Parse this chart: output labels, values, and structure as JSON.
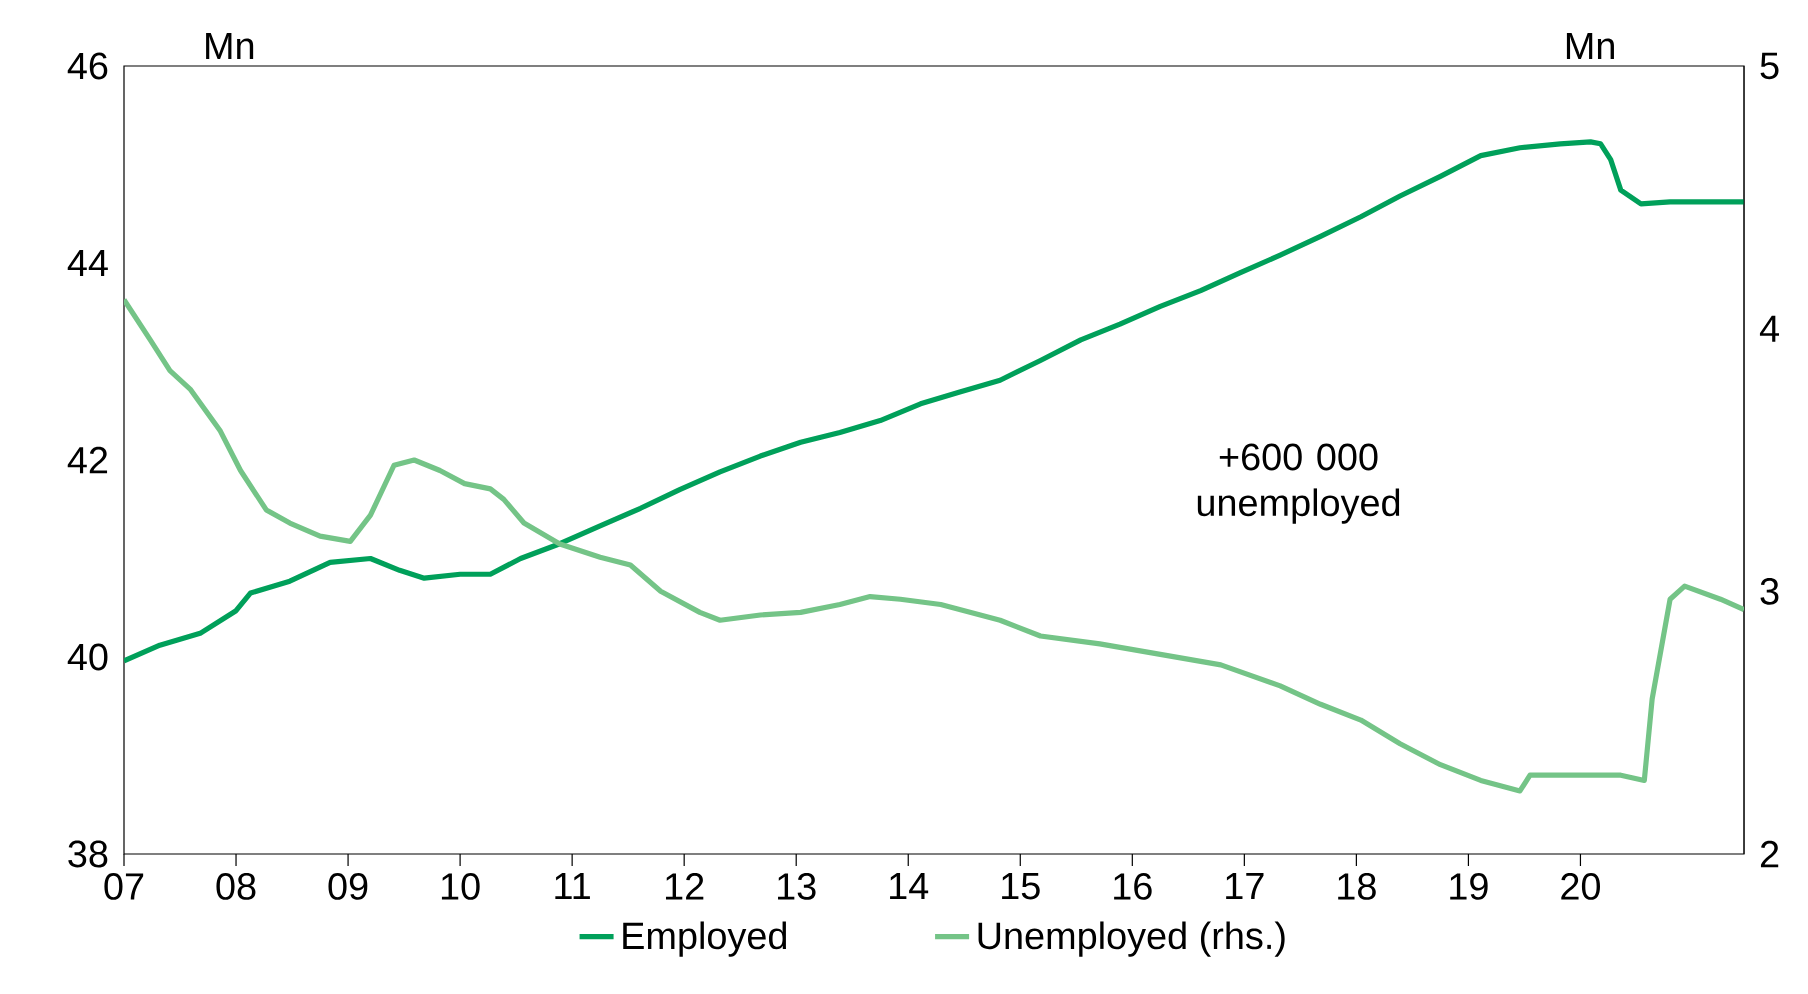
{
  "chart_data": {
    "type": "line",
    "ylabel": "Mn",
    "y2label": "Mn",
    "xlim": [
      7,
      21.46
    ],
    "xticks": [
      {
        "value": 7,
        "label": "07"
      },
      {
        "value": 8,
        "label": "08"
      },
      {
        "value": 9,
        "label": "09"
      },
      {
        "value": 10,
        "label": "10"
      },
      {
        "value": 11,
        "label": "11"
      },
      {
        "value": 12,
        "label": "12"
      },
      {
        "value": 13,
        "label": "13"
      },
      {
        "value": 14,
        "label": "14"
      },
      {
        "value": 15,
        "label": "15"
      },
      {
        "value": 16,
        "label": "16"
      },
      {
        "value": 17,
        "label": "17"
      },
      {
        "value": 18,
        "label": "18"
      },
      {
        "value": 19,
        "label": "19"
      },
      {
        "value": 20,
        "label": "20"
      }
    ],
    "ylim": [
      38,
      46
    ],
    "yticks": [
      38,
      40,
      42,
      44,
      46
    ],
    "y2lim": [
      2,
      5
    ],
    "y2ticks": [
      2,
      3,
      4,
      5
    ],
    "legend": "bottom",
    "annotations": [
      "+600 000 unemployed"
    ],
    "series": [
      {
        "name": "Employed",
        "color": "#00a05a",
        "x": [
          7.0,
          7.32,
          7.68,
          8.0,
          8.13,
          8.48,
          8.84,
          9.2,
          9.46,
          9.68,
          10.0,
          10.27,
          10.54,
          10.89,
          11.25,
          11.61,
          11.96,
          12.32,
          12.68,
          13.04,
          13.39,
          13.75,
          14.11,
          14.46,
          14.82,
          15.18,
          15.54,
          15.89,
          16.25,
          16.61,
          16.96,
          17.32,
          17.68,
          18.04,
          18.39,
          18.75,
          19.11,
          19.46,
          19.82,
          20.09,
          20.18,
          20.27,
          20.36,
          20.54,
          20.8,
          21.46
        ],
        "values": [
          39.96,
          40.12,
          40.24,
          40.47,
          40.65,
          40.77,
          40.96,
          41.0,
          40.88,
          40.8,
          40.84,
          40.84,
          41.0,
          41.15,
          41.33,
          41.51,
          41.7,
          41.88,
          42.04,
          42.18,
          42.28,
          42.4,
          42.57,
          42.69,
          42.81,
          43.01,
          43.22,
          43.38,
          43.56,
          43.72,
          43.9,
          44.08,
          44.27,
          44.47,
          44.68,
          44.88,
          45.09,
          45.17,
          45.21,
          45.23,
          45.21,
          45.05,
          44.74,
          44.6,
          44.62,
          44.62
        ]
      },
      {
        "name": "Unemployed (rhs.)",
        "color": "#74c487",
        "axis": "y2",
        "x": [
          7.0,
          7.23,
          7.41,
          7.59,
          7.86,
          8.04,
          8.27,
          8.48,
          8.75,
          9.02,
          9.2,
          9.41,
          9.59,
          9.82,
          10.04,
          10.27,
          10.39,
          10.57,
          10.89,
          11.25,
          11.52,
          11.79,
          12.14,
          12.32,
          12.68,
          13.04,
          13.39,
          13.66,
          13.93,
          14.29,
          14.82,
          15.18,
          15.71,
          16.25,
          16.79,
          17.32,
          17.68,
          18.04,
          18.39,
          18.75,
          19.11,
          19.46,
          19.55,
          20.0,
          20.36,
          20.57,
          20.64,
          20.8,
          20.93,
          21.25,
          21.46
        ],
        "values": [
          4.11,
          3.96,
          3.84,
          3.77,
          3.61,
          3.46,
          3.31,
          3.26,
          3.21,
          3.19,
          3.29,
          3.48,
          3.5,
          3.46,
          3.41,
          3.39,
          3.35,
          3.26,
          3.18,
          3.13,
          3.1,
          3.0,
          2.92,
          2.89,
          2.91,
          2.92,
          2.95,
          2.98,
          2.97,
          2.95,
          2.89,
          2.83,
          2.8,
          2.76,
          2.72,
          2.64,
          2.57,
          2.51,
          2.42,
          2.34,
          2.28,
          2.24,
          2.3,
          2.3,
          2.3,
          2.28,
          2.59,
          2.97,
          3.02,
          2.97,
          2.93
        ]
      }
    ]
  }
}
